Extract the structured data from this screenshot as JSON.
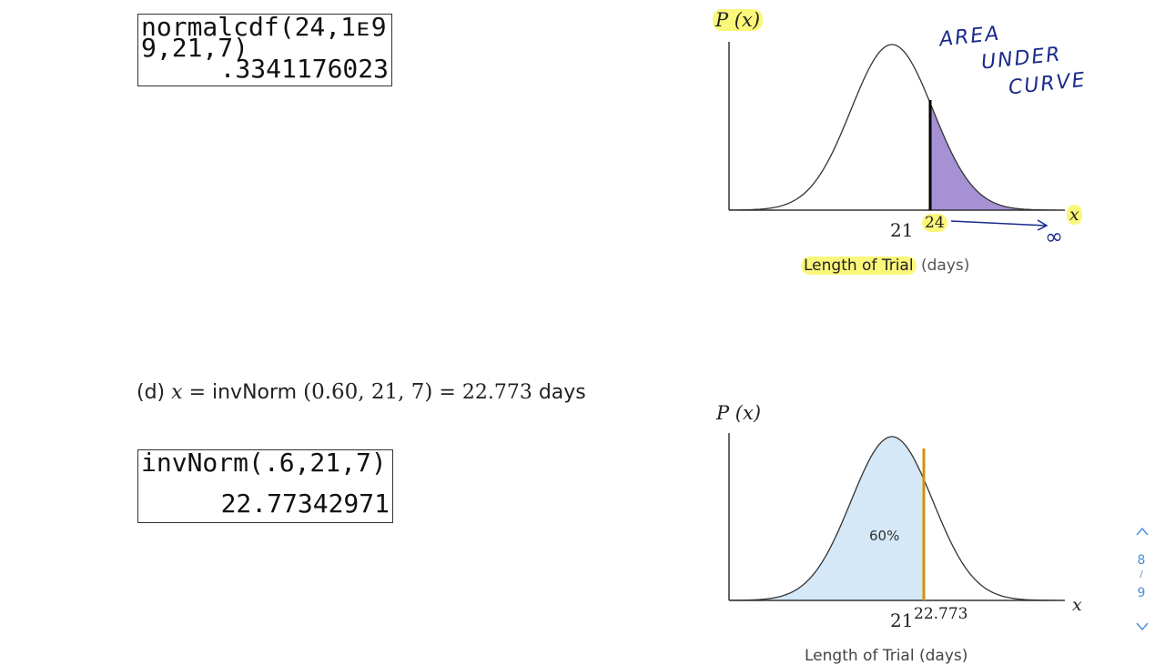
{
  "calculator_1": {
    "lines": [
      "normalcdf(24,1ᴇ9",
      "9,21,7)",
      ".3341176023"
    ]
  },
  "graph_1": {
    "y_label": "P (x)",
    "x_label": "x",
    "mean_label": "21",
    "cutoff_label": "24",
    "axis_title": "Length of Trial",
    "axis_unit": "(days)"
  },
  "annotations": {
    "lines": [
      "AREA",
      "UNDER",
      "CURVE"
    ],
    "infinity": "∞"
  },
  "part_d": {
    "label": "(d)",
    "variable": "x",
    "equals": "=",
    "function": "invNorm",
    "arguments": "(0.60, 21, 7)",
    "result": "= 22.773",
    "unit": "days"
  },
  "calculator_2": {
    "lines": [
      "invNorm(.6,21,7)",
      "22.77342971"
    ]
  },
  "graph_2": {
    "y_label": "P (x)",
    "x_label": "x",
    "area_label": "60%",
    "mean_label": "21",
    "cutoff_label": "22.773",
    "axis_title": "Length of Trial (days)"
  },
  "page_nav": {
    "current": "8",
    "separator": "/",
    "total": "9"
  }
}
